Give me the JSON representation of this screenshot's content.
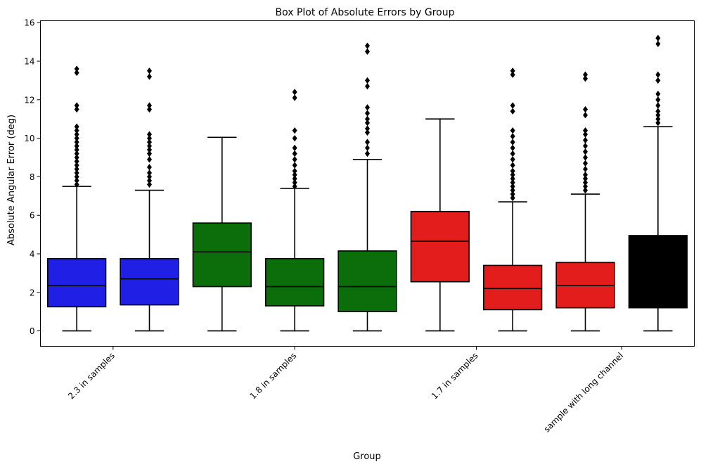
{
  "chart_data": {
    "type": "box",
    "title": "Box Plot of Absolute Errors by Group",
    "xlabel": "Group",
    "ylabel": "Absolute Angular Error (deg)",
    "ylim": [
      -0.8,
      16.1
    ],
    "yticks": [
      0,
      2,
      4,
      6,
      8,
      10,
      12,
      14,
      16
    ],
    "xtick_labels": [
      {
        "label": "2.3 in samples",
        "box_index": 0.5
      },
      {
        "label": "1.8 in samples",
        "box_index": 3
      },
      {
        "label": "1.7 in samples",
        "box_index": 5.5
      },
      {
        "label": "sample with long channel",
        "box_index": 7.5
      }
    ],
    "grid": false,
    "legend": "none",
    "boxes": [
      {
        "color": "#1f1fe6",
        "whisker_low": 0,
        "q1": 1.25,
        "median": 2.35,
        "q3": 3.75,
        "whisker_high": 7.5,
        "outliers": [
          7.6,
          7.8,
          8.0,
          8.2,
          8.4,
          8.6,
          8.8,
          9.0,
          9.2,
          9.4,
          9.6,
          9.8,
          10.0,
          10.2,
          10.4,
          10.6,
          11.5,
          11.7,
          13.4,
          13.6
        ]
      },
      {
        "color": "#1f1fe6",
        "whisker_low": 0,
        "q1": 1.35,
        "median": 2.7,
        "q3": 3.75,
        "whisker_high": 7.3,
        "outliers": [
          7.6,
          7.8,
          8.0,
          8.2,
          8.5,
          8.9,
          9.2,
          9.4,
          9.6,
          9.8,
          10.0,
          10.2,
          11.5,
          11.7,
          13.2,
          13.5
        ]
      },
      {
        "color": "#0b6e0b",
        "whisker_low": 0,
        "q1": 2.3,
        "median": 4.1,
        "q3": 5.6,
        "whisker_high": 10.05,
        "outliers": []
      },
      {
        "color": "#0b6e0b",
        "whisker_low": 0,
        "q1": 1.3,
        "median": 2.3,
        "q3": 3.75,
        "whisker_high": 7.4,
        "outliers": [
          7.5,
          7.7,
          7.9,
          8.1,
          8.3,
          8.6,
          8.9,
          9.2,
          9.5,
          10.0,
          10.4,
          12.1,
          12.4
        ]
      },
      {
        "color": "#0b6e0b",
        "whisker_low": 0,
        "q1": 1.0,
        "median": 2.3,
        "q3": 4.15,
        "whisker_high": 8.9,
        "outliers": [
          9.2,
          9.5,
          9.8,
          10.3,
          10.5,
          10.8,
          11.0,
          11.3,
          11.6,
          12.7,
          13.0,
          14.5,
          14.8
        ]
      },
      {
        "color": "#e31c1c",
        "whisker_low": 0,
        "q1": 2.55,
        "median": 4.65,
        "q3": 6.2,
        "whisker_high": 11.0,
        "outliers": []
      },
      {
        "color": "#e31c1c",
        "whisker_low": 0,
        "q1": 1.1,
        "median": 2.2,
        "q3": 3.4,
        "whisker_high": 6.7,
        "outliers": [
          6.9,
          7.1,
          7.3,
          7.5,
          7.7,
          7.9,
          8.1,
          8.3,
          8.6,
          8.9,
          9.2,
          9.5,
          9.8,
          10.1,
          10.4,
          11.4,
          11.7,
          13.3,
          13.5
        ]
      },
      {
        "color": "#e31c1c",
        "whisker_low": 0,
        "q1": 1.2,
        "median": 2.35,
        "q3": 3.55,
        "whisker_high": 7.1,
        "outliers": [
          7.3,
          7.5,
          7.7,
          7.9,
          8.1,
          8.4,
          8.7,
          9.0,
          9.3,
          9.6,
          9.9,
          10.2,
          10.4,
          11.2,
          11.5,
          13.1,
          13.3
        ]
      },
      {
        "color": "#000000",
        "whisker_low": 0,
        "q1": 1.2,
        "median": 1.2,
        "q3": 4.95,
        "whisker_high": 10.6,
        "outliers": [
          10.8,
          11.0,
          11.2,
          11.4,
          11.7,
          12.0,
          12.3,
          13.0,
          13.3,
          14.9,
          15.2
        ]
      }
    ]
  }
}
